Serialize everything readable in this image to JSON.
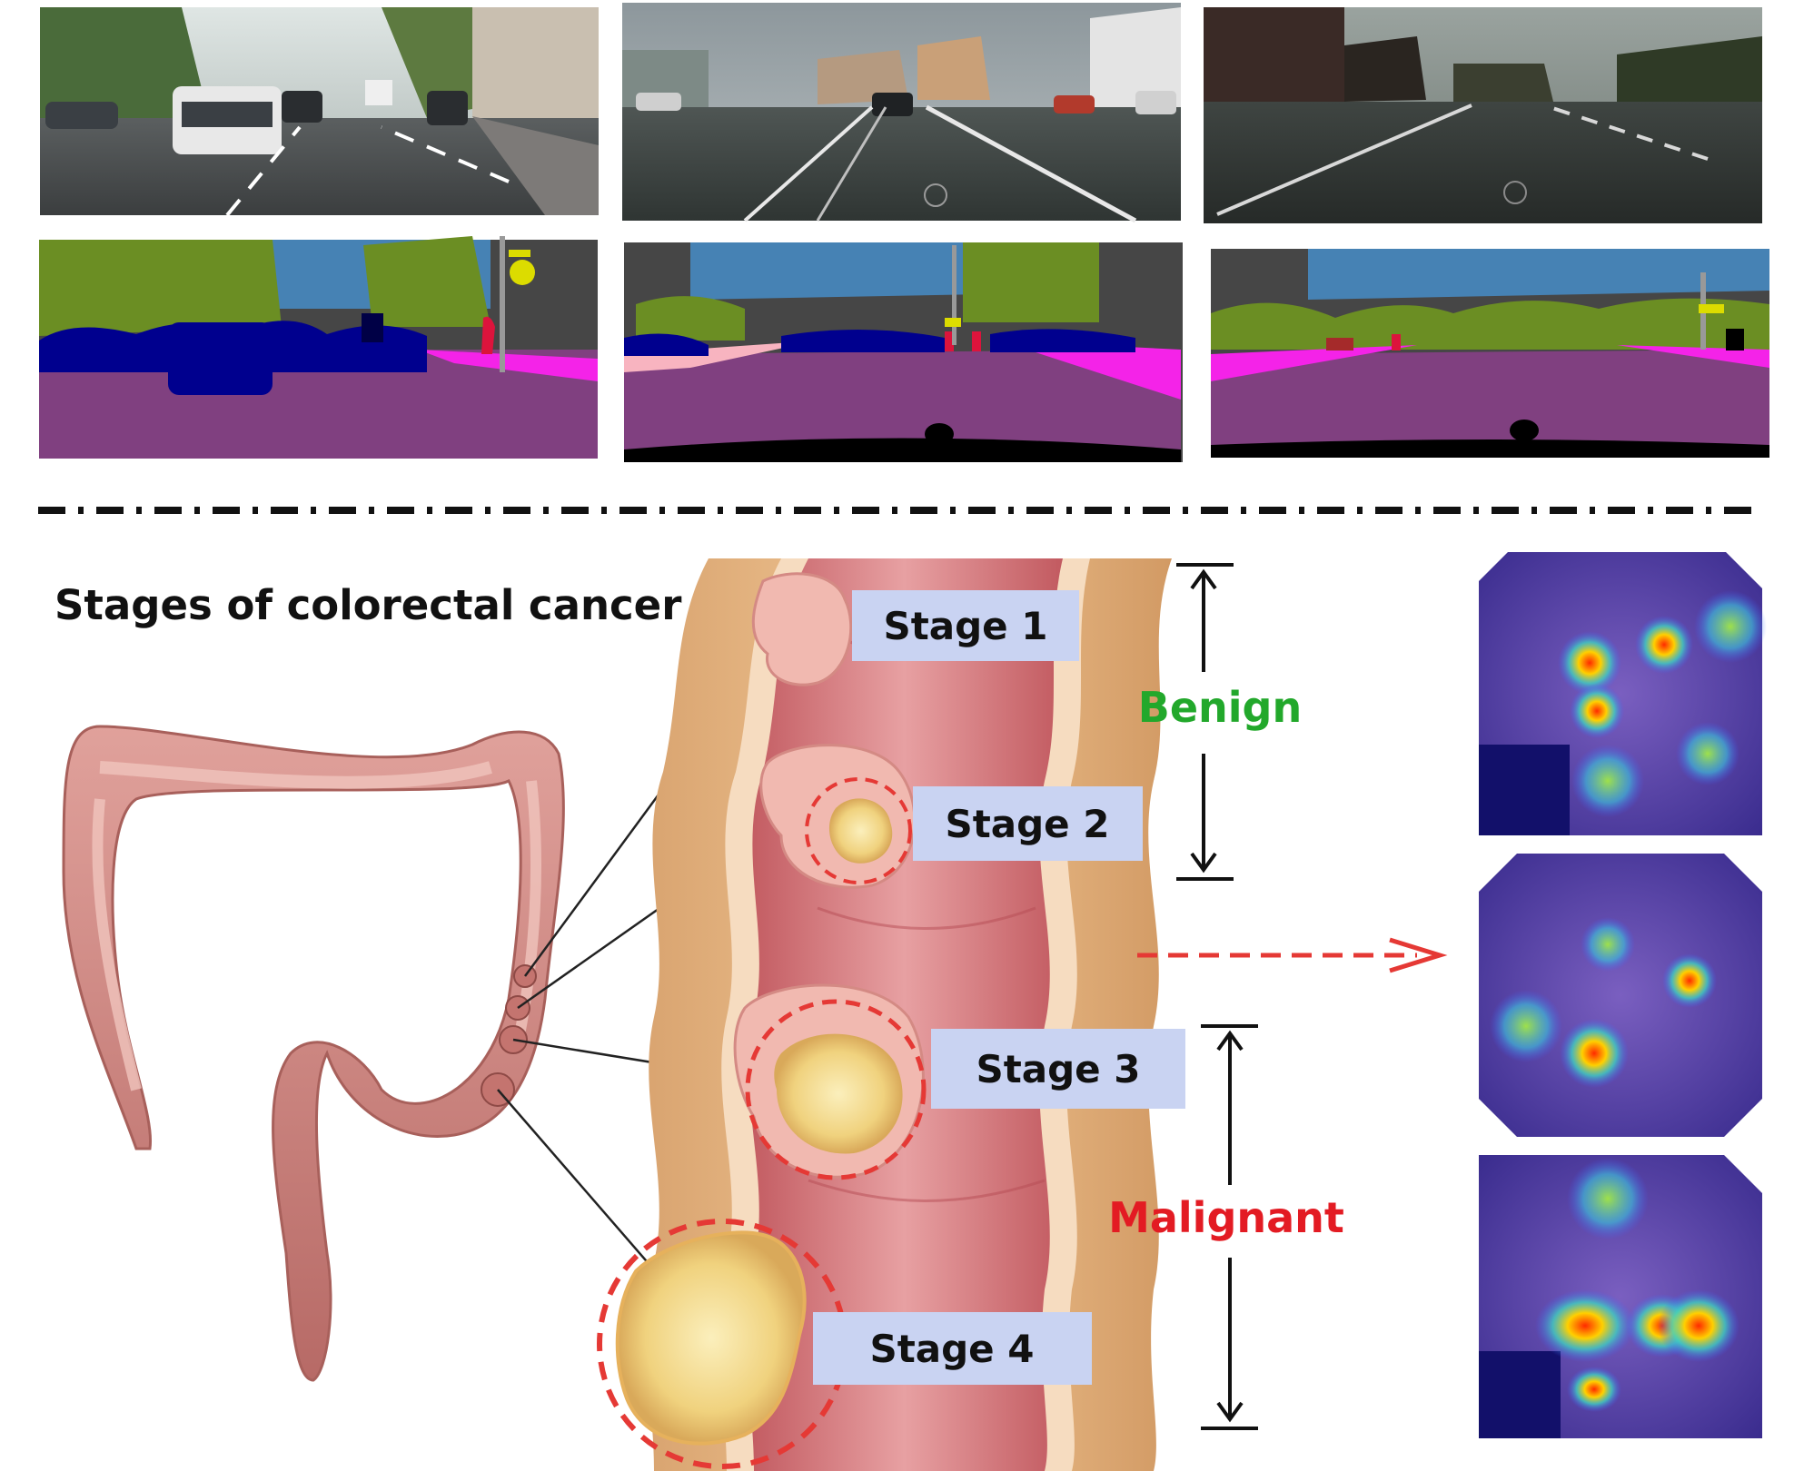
{
  "title": "Stages of colorectal cancer",
  "stages": [
    {
      "label": "Stage 1"
    },
    {
      "label": "Stage 2"
    },
    {
      "label": "Stage 3"
    },
    {
      "label": "Stage 4"
    }
  ],
  "classes": {
    "benign": {
      "label": "Benign",
      "color": "#22a82b"
    },
    "malignant": {
      "label": "Malignant",
      "color": "#e31b23"
    }
  },
  "colors": {
    "road": "#804080",
    "sidewalk": "#f423e8",
    "sky": "#4682b4",
    "vegetation": "#6b8e23",
    "building": "#464646",
    "car": "#00008e",
    "person": "#dc143c",
    "sign": "#dcdc00",
    "divider": "#111111",
    "arrow": "#e53935",
    "tumor": "#f3d98a",
    "lining": "#d9868a"
  },
  "icons": {
    "divider": "dash-dot-line",
    "arrow": "dashed-right-arrow"
  }
}
